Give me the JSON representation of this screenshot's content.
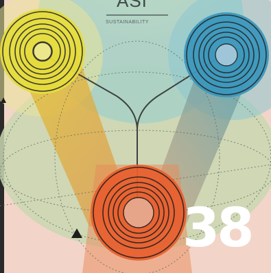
{
  "cover": {
    "logo_text": "ASI",
    "logo_subtitle": "SUSTAINABILITY",
    "page_number": "38"
  },
  "colors": {
    "yellow": "#d9d33a",
    "blue": "#2f8fb5",
    "orange": "#e55a2b",
    "background": "#f5d8cc",
    "number": "#ffffff"
  },
  "icons": [
    "triangle-marker-icon"
  ]
}
